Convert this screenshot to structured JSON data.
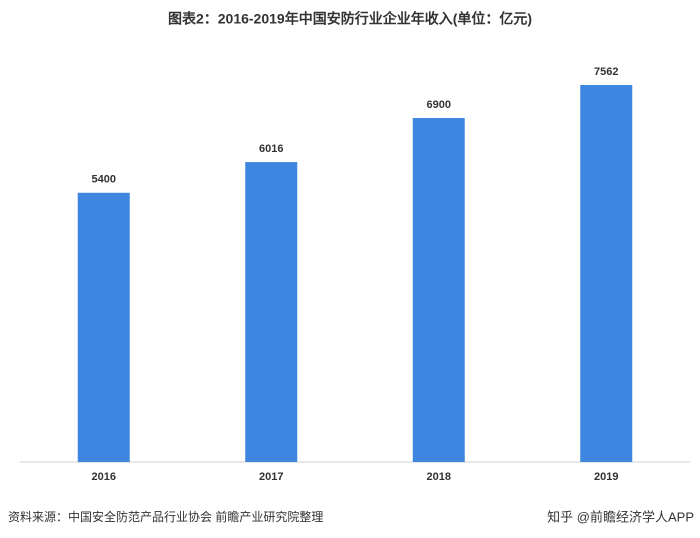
{
  "chart_data": {
    "type": "bar",
    "title": "图表2：2016-2019年中国安防行业企业年收入(单位：亿元)",
    "categories": [
      "2016",
      "2017",
      "2018",
      "2019"
    ],
    "values": [
      5400,
      6016,
      6900,
      7562
    ],
    "color": "#3f86e0",
    "source": "资料来源：中国安全防范产品行业协会 前瞻产业研究院整理",
    "watermark": "知乎 @前瞻经济学人APP"
  }
}
